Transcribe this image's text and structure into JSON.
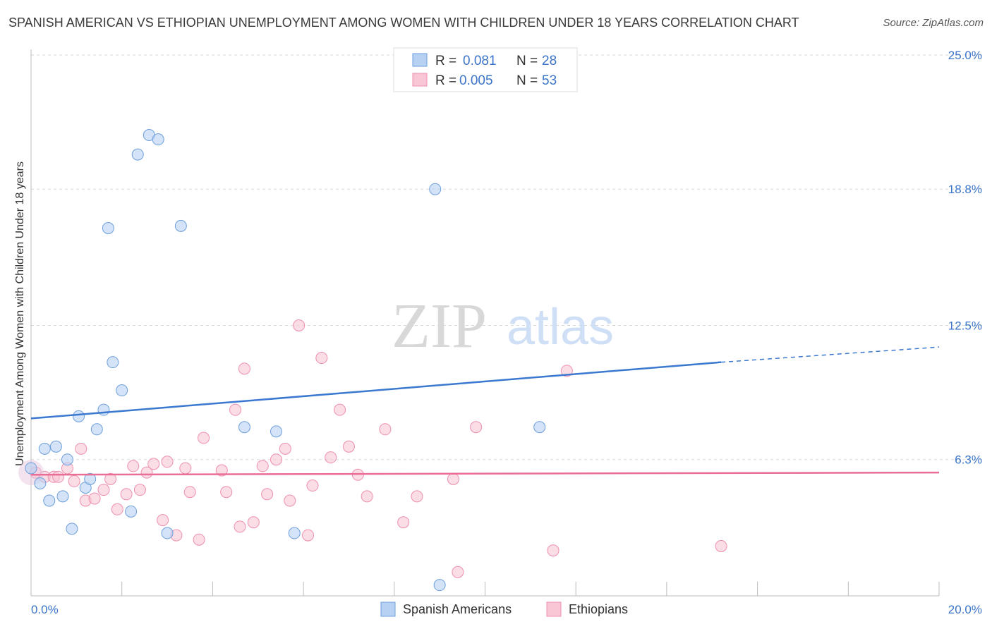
{
  "header": {
    "title": "SPANISH AMERICAN VS ETHIOPIAN UNEMPLOYMENT AMONG WOMEN WITH CHILDREN UNDER 18 YEARS CORRELATION CHART",
    "source": "Source: ZipAtlas.com"
  },
  "watermark": {
    "zip": "ZIP",
    "atlas": "atlas"
  },
  "legend_box": {
    "rows": [
      {
        "r_label": "R =",
        "r_value": "0.081",
        "n_label": "N =",
        "n_value": "28"
      },
      {
        "r_label": "R =",
        "r_value": "0.005",
        "n_label": "N =",
        "n_value": "53"
      }
    ]
  },
  "bottom_legend": [
    {
      "label": "Spanish Americans"
    },
    {
      "label": "Ethiopians"
    }
  ],
  "colors": {
    "blue_fill": "#b7d1f2",
    "blue_stroke": "#6d9fdc",
    "blue_line": "#3b78d0",
    "pink_fill": "#f9c6d6",
    "pink_stroke": "#ee8fae",
    "pink_line": "#ea6d95",
    "axis_value": "#3b74c8",
    "grid": "#d9d9d9"
  },
  "chart_data": {
    "type": "scatter",
    "title": "SPANISH AMERICAN VS ETHIOPIAN UNEMPLOYMENT AMONG WOMEN WITH CHILDREN UNDER 18 YEARS CORRELATION CHART",
    "xlabel": "",
    "ylabel": "Unemployment Among Women with Children Under 18 years",
    "xlim": [
      0,
      20
    ],
    "ylim": [
      0,
      25
    ],
    "x_tick_labels": [
      "0.0%",
      "20.0%"
    ],
    "y_ticks": [
      6.3,
      12.5,
      18.8,
      25.0
    ],
    "y_tick_labels": [
      "6.3%",
      "12.5%",
      "18.8%",
      "25.0%"
    ],
    "series": [
      {
        "name": "Spanish Americans",
        "R": 0.081,
        "N": 28,
        "trend": {
          "x0": 0,
          "y0": 8.2,
          "x1": 15.2,
          "y1": 10.8,
          "dash_to_x": 20,
          "dash_to_y": 11.5
        },
        "points": [
          [
            0.0,
            5.9
          ],
          [
            0.2,
            5.2
          ],
          [
            0.3,
            6.8
          ],
          [
            0.4,
            4.4
          ],
          [
            0.55,
            6.9
          ],
          [
            0.7,
            4.6
          ],
          [
            0.8,
            6.3
          ],
          [
            0.9,
            3.1
          ],
          [
            1.05,
            8.3
          ],
          [
            1.2,
            5.0
          ],
          [
            1.3,
            5.4
          ],
          [
            1.45,
            7.7
          ],
          [
            1.6,
            8.6
          ],
          [
            1.7,
            17.0
          ],
          [
            1.8,
            10.8
          ],
          [
            2.0,
            9.5
          ],
          [
            2.2,
            3.9
          ],
          [
            2.35,
            20.4
          ],
          [
            2.6,
            21.3
          ],
          [
            2.8,
            21.1
          ],
          [
            3.0,
            2.9
          ],
          [
            3.3,
            17.1
          ],
          [
            4.7,
            7.8
          ],
          [
            5.4,
            7.6
          ],
          [
            5.8,
            2.9
          ],
          [
            8.9,
            18.8
          ],
          [
            9.0,
            0.5
          ],
          [
            11.2,
            7.8
          ]
        ]
      },
      {
        "name": "Ethiopians",
        "R": 0.005,
        "N": 53,
        "trend": {
          "x0": 0,
          "y0": 5.6,
          "x1": 20,
          "y1": 5.7
        },
        "points": [
          [
            0.1,
            5.7
          ],
          [
            0.3,
            5.5
          ],
          [
            0.5,
            5.5
          ],
          [
            0.6,
            5.5
          ],
          [
            0.8,
            5.9
          ],
          [
            0.95,
            5.3
          ],
          [
            1.1,
            6.8
          ],
          [
            1.2,
            4.4
          ],
          [
            1.4,
            4.5
          ],
          [
            1.6,
            4.9
          ],
          [
            1.75,
            5.4
          ],
          [
            1.9,
            4.0
          ],
          [
            2.1,
            4.7
          ],
          [
            2.25,
            6.0
          ],
          [
            2.4,
            4.9
          ],
          [
            2.55,
            5.7
          ],
          [
            2.7,
            6.1
          ],
          [
            2.9,
            3.5
          ],
          [
            3.0,
            6.2
          ],
          [
            3.2,
            2.8
          ],
          [
            3.4,
            5.9
          ],
          [
            3.5,
            4.8
          ],
          [
            3.7,
            2.6
          ],
          [
            3.8,
            7.3
          ],
          [
            4.2,
            5.8
          ],
          [
            4.3,
            4.8
          ],
          [
            4.5,
            8.6
          ],
          [
            4.6,
            3.2
          ],
          [
            4.7,
            10.5
          ],
          [
            4.9,
            3.4
          ],
          [
            5.1,
            6.0
          ],
          [
            5.2,
            4.7
          ],
          [
            5.4,
            6.3
          ],
          [
            5.6,
            6.8
          ],
          [
            5.7,
            4.4
          ],
          [
            5.9,
            12.5
          ],
          [
            6.1,
            2.8
          ],
          [
            6.2,
            5.1
          ],
          [
            6.4,
            11.0
          ],
          [
            6.6,
            6.4
          ],
          [
            6.8,
            8.6
          ],
          [
            7.0,
            6.9
          ],
          [
            7.2,
            5.6
          ],
          [
            7.4,
            4.6
          ],
          [
            7.8,
            7.7
          ],
          [
            8.2,
            3.4
          ],
          [
            8.5,
            4.6
          ],
          [
            9.3,
            5.4
          ],
          [
            9.4,
            1.1
          ],
          [
            9.8,
            7.8
          ],
          [
            11.5,
            2.1
          ],
          [
            11.8,
            10.4
          ],
          [
            15.2,
            2.3
          ]
        ]
      }
    ]
  }
}
